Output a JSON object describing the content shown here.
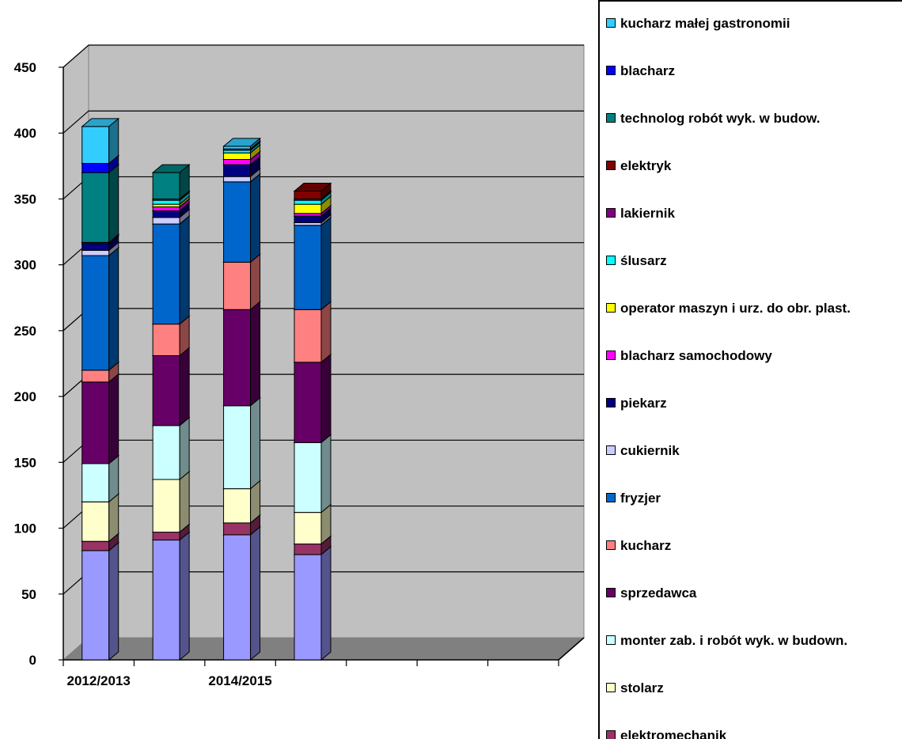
{
  "chart_data": {
    "type": "bar",
    "stacked": true,
    "three_d": true,
    "ylim": [
      0,
      450
    ],
    "yticks": [
      0,
      50,
      100,
      150,
      200,
      250,
      300,
      350,
      400,
      450
    ],
    "x_slots": 7,
    "categories": [
      "2012/2013",
      "",
      "2014/2015",
      ""
    ],
    "grid": true,
    "legend_position": "right",
    "series": [
      {
        "name": "",
        "color": "#9999FF",
        "values": [
          83,
          91,
          95,
          80
        ]
      },
      {
        "name": "elektromechanik",
        "color": "#993366",
        "values": [
          7,
          6,
          9,
          8
        ]
      },
      {
        "name": "stolarz",
        "color": "#FFFFCC",
        "values": [
          30,
          40,
          26,
          24
        ]
      },
      {
        "name": "monter zab. i robót wyk. w budown.",
        "color": "#CCFFFF",
        "values": [
          29,
          41,
          63,
          53
        ]
      },
      {
        "name": "sprzedawca",
        "color": "#660066",
        "values": [
          62,
          53,
          73,
          61
        ]
      },
      {
        "name": "kucharz",
        "color": "#FF8080",
        "values": [
          9,
          24,
          36,
          40
        ]
      },
      {
        "name": "fryzjer",
        "color": "#0066CC",
        "values": [
          87,
          76,
          61,
          64
        ]
      },
      {
        "name": "cukiernik",
        "color": "#CCCCFF",
        "values": [
          4,
          5,
          4,
          2
        ]
      },
      {
        "name": "piekarz",
        "color": "#000080",
        "values": [
          5,
          5,
          9,
          5
        ]
      },
      {
        "name": "blacharz samochodowy",
        "color": "#FF00FF",
        "values": [
          0,
          3,
          4,
          2
        ]
      },
      {
        "name": "operator maszyn i urz. do obr. plast.",
        "color": "#FFFF00",
        "values": [
          0,
          2,
          5,
          7
        ]
      },
      {
        "name": "ślusarz",
        "color": "#00FFFF",
        "values": [
          0,
          3,
          2,
          3
        ]
      },
      {
        "name": "lakiernik",
        "color": "#800080",
        "values": [
          0,
          1,
          1,
          1
        ]
      },
      {
        "name": "elektryk",
        "color": "#800000",
        "values": [
          1,
          0,
          0,
          6
        ]
      },
      {
        "name": "technolog robót wyk. w budow.",
        "color": "#008080",
        "values": [
          53,
          20,
          0,
          0
        ]
      },
      {
        "name": "blacharz",
        "color": "#0000FF",
        "values": [
          7,
          0,
          0,
          0
        ]
      },
      {
        "name": "kucharz małej gastronomii",
        "color": "#33CCFF",
        "values": [
          28,
          0,
          2,
          0
        ]
      }
    ]
  }
}
